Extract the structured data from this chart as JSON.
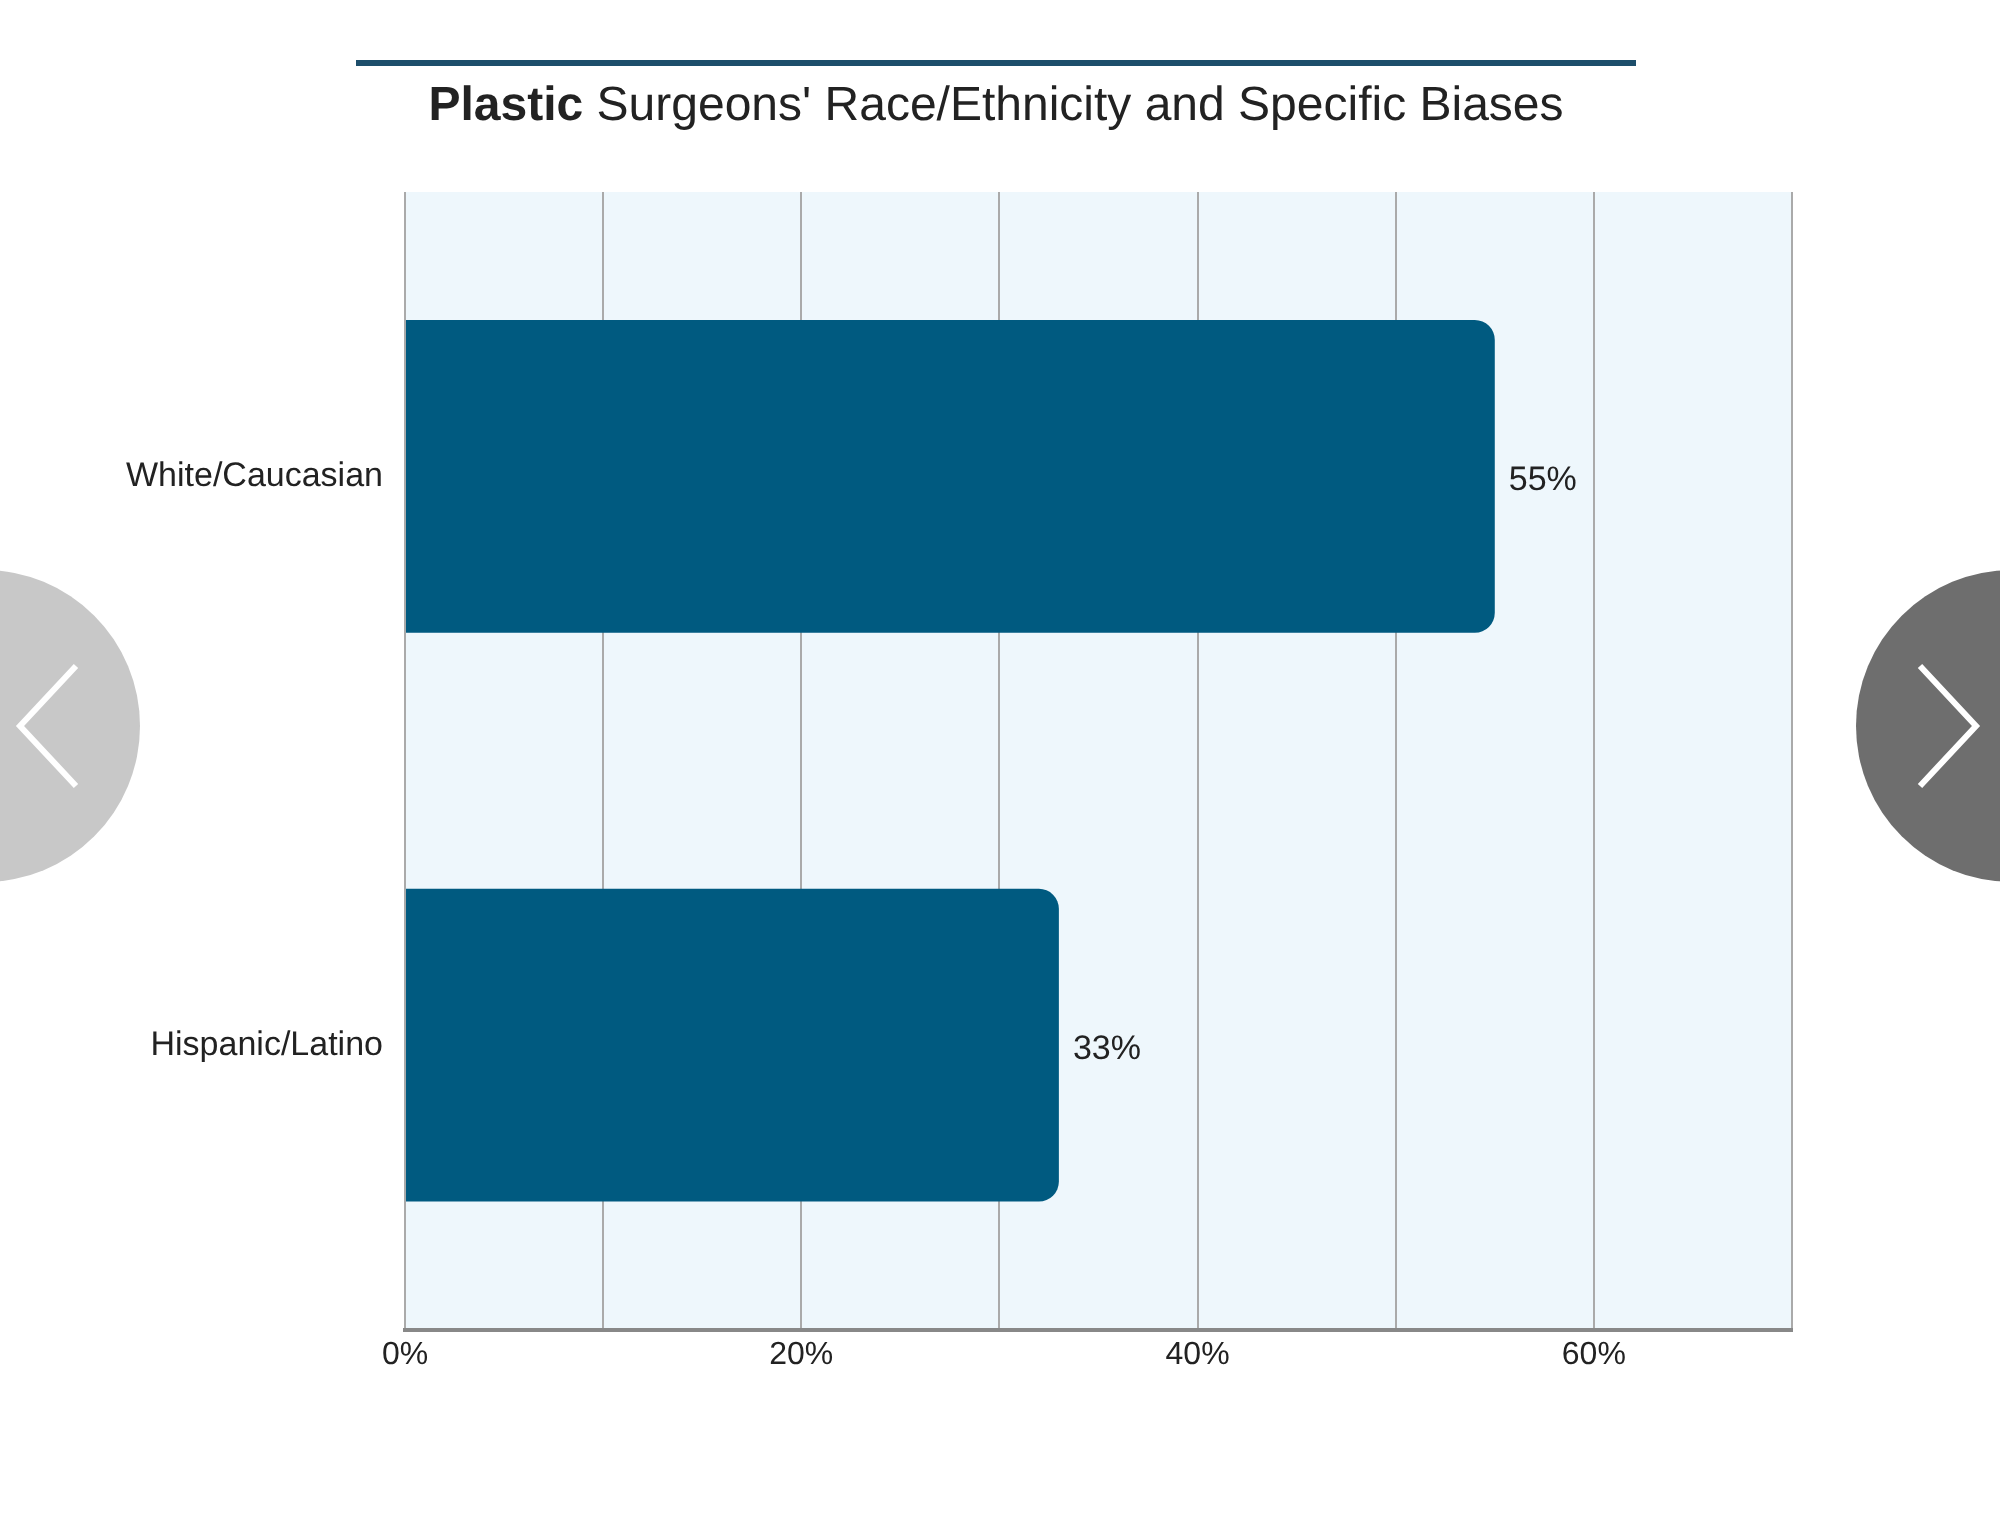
{
  "chart_data": {
    "type": "bar",
    "orientation": "horizontal",
    "title": "Plastic Surgeons' Race/Ethnicity and Specific Biases",
    "categories": [
      "White/Caucasian",
      "Hispanic/Latino"
    ],
    "values": [
      55,
      33
    ],
    "color": "#005a80",
    "value_labels": [
      "55%",
      "33%"
    ],
    "xlim": [
      0,
      70
    ],
    "xticks": [
      {
        "value": 0,
        "label": "0%"
      },
      {
        "value": 10,
        "label": null
      },
      {
        "value": 20,
        "label": "20%"
      },
      {
        "value": 30,
        "label": null
      },
      {
        "value": 40,
        "label": "40%"
      },
      {
        "value": 50,
        "label": null
      },
      {
        "value": 60,
        "label": "60%"
      },
      {
        "value": 70,
        "label": null
      }
    ],
    "grid": "x",
    "legend": false
  }
}
